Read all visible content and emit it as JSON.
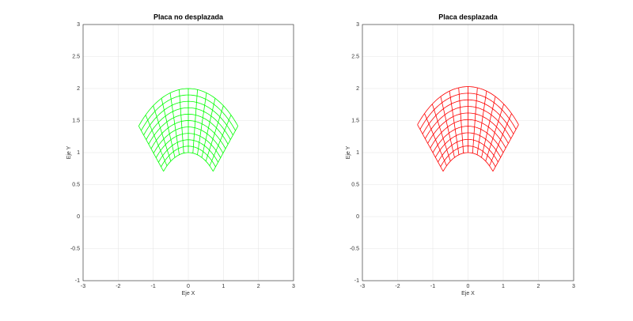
{
  "chart_data": [
    {
      "type": "mesh",
      "title": "Placa no desplazada",
      "x_label": "Eje X",
      "y_label": "Eje Y",
      "color": "#00ff00",
      "radii": [
        1,
        1.1,
        1.2,
        1.3,
        1.4,
        1.5,
        1.6,
        1.7,
        1.8,
        1.9,
        2
      ],
      "angles": [
        45,
        52.5,
        60,
        67.5,
        75,
        82.5,
        90,
        97.5,
        105,
        112.5,
        120,
        127.5,
        135
      ],
      "xlim": [
        -3,
        3
      ],
      "ylim": [
        -1,
        3
      ],
      "xticks": [
        -3,
        -2,
        -1,
        0,
        1,
        2,
        3
      ],
      "yticks": [
        -1,
        -0.5,
        0,
        0.5,
        1,
        1.5,
        2,
        2.5,
        3
      ],
      "grid": true
    },
    {
      "type": "mesh",
      "title": "Placa desplazada",
      "x_label": "Eje X",
      "y_label": "Eje Y",
      "color": "#ff0000",
      "radii": [
        1,
        1.103,
        1.206,
        1.309,
        1.412,
        1.515,
        1.618,
        1.721,
        1.824,
        1.927,
        2.03
      ],
      "angles": [
        45,
        52.5,
        60,
        67.5,
        75,
        82.5,
        90,
        97.5,
        105,
        112.5,
        120,
        127.5,
        135
      ],
      "xlim": [
        -3,
        3
      ],
      "ylim": [
        -1,
        3
      ],
      "xticks": [
        -3,
        -2,
        -1,
        0,
        1,
        2,
        3
      ],
      "yticks": [
        -1,
        -0.5,
        0,
        0.5,
        1,
        1.5,
        2,
        2.5,
        3
      ],
      "grid": true
    }
  ]
}
